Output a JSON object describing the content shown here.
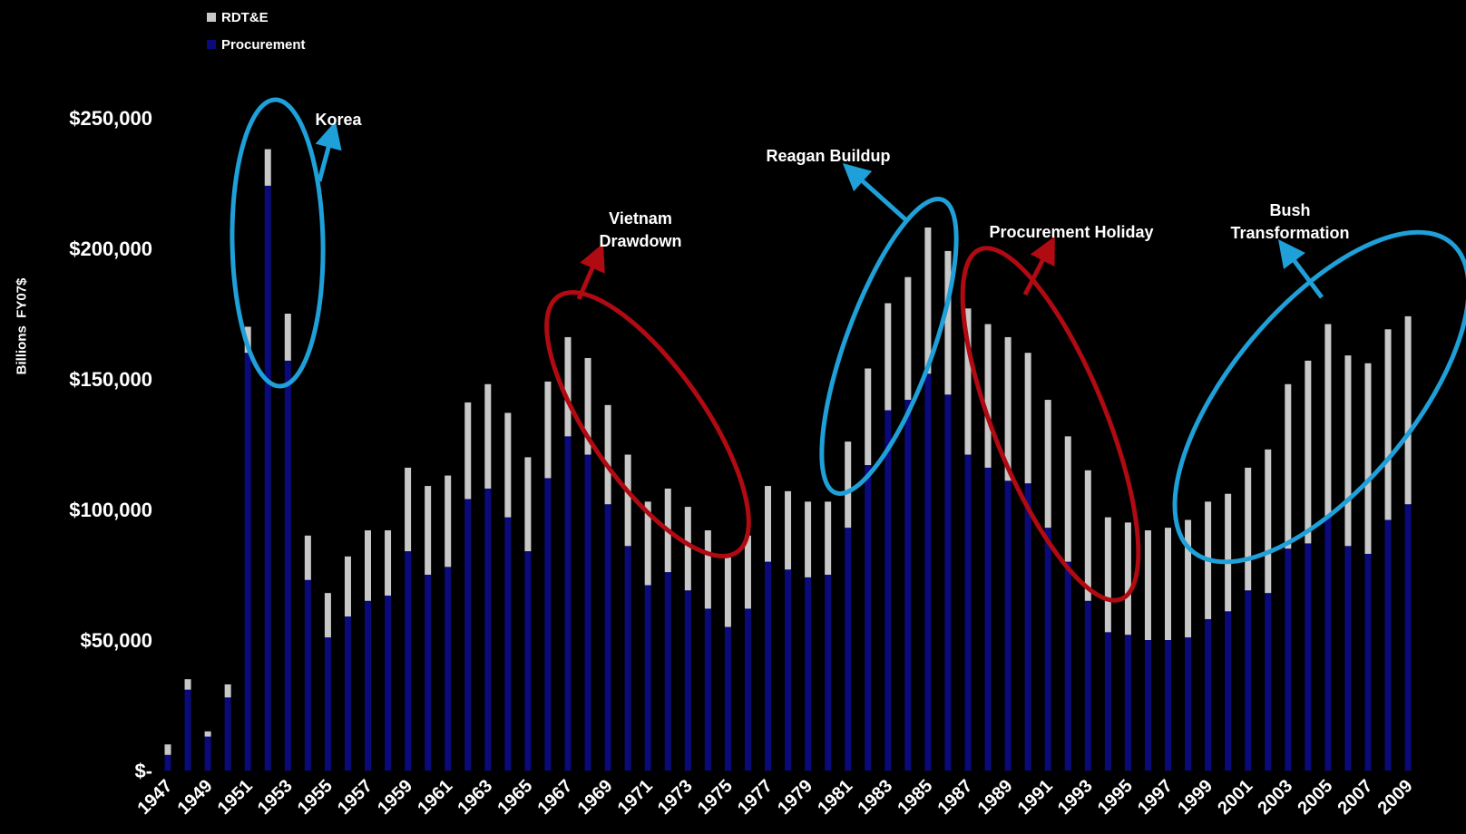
{
  "legend": [
    {
      "label": "RDT&E",
      "color": "#c8c8c8"
    },
    {
      "label": "Procurement",
      "color": "#0a0a7a"
    }
  ],
  "colors": {
    "background": "#000000",
    "procurement": "#0a0a7a",
    "rdte": "#c8c8c8",
    "highlight_blue": "#1fa0d8",
    "highlight_red": "#b00a12"
  },
  "chart_data": {
    "type": "bar",
    "stacked": true,
    "ylabel": "Billions  FY07$",
    "ylim": [
      0,
      250000
    ],
    "yticks": [
      {
        "value": 0,
        "label": "$-"
      },
      {
        "value": 50000,
        "label": "$50,000"
      },
      {
        "value": 100000,
        "label": "$100,000"
      },
      {
        "value": 150000,
        "label": "$150,000"
      },
      {
        "value": 200000,
        "label": "$200,000"
      },
      {
        "value": 250000,
        "label": "$250,000"
      }
    ],
    "categories": [
      1947,
      1948,
      1949,
      1950,
      1951,
      1952,
      1953,
      1954,
      1955,
      1956,
      1957,
      1958,
      1959,
      1960,
      1961,
      1962,
      1963,
      1964,
      1965,
      1966,
      1967,
      1968,
      1969,
      1970,
      1971,
      1972,
      1973,
      1974,
      1975,
      1976,
      1977,
      1978,
      1979,
      1980,
      1981,
      1982,
      1983,
      1984,
      1985,
      1986,
      1987,
      1988,
      1989,
      1990,
      1991,
      1992,
      1993,
      1994,
      1995,
      1996,
      1997,
      1998,
      1999,
      2000,
      2001,
      2002,
      2003,
      2004,
      2005,
      2006,
      2007,
      2008,
      2009
    ],
    "series": [
      {
        "name": "Procurement",
        "values": [
          6000,
          31000,
          13000,
          28000,
          160000,
          224000,
          157000,
          73000,
          51000,
          59000,
          65000,
          67000,
          84000,
          75000,
          78000,
          104000,
          108000,
          97000,
          84000,
          112000,
          128000,
          121000,
          102000,
          86000,
          71000,
          76000,
          69000,
          62000,
          55000,
          62000,
          80000,
          77000,
          74000,
          75000,
          93000,
          117000,
          138000,
          142000,
          152000,
          144000,
          121000,
          116000,
          111000,
          110000,
          93000,
          80000,
          65000,
          53000,
          52000,
          50000,
          50000,
          51000,
          58000,
          61000,
          69000,
          68000,
          85000,
          87000,
          97000,
          86000,
          83000,
          96000,
          102000
        ]
      },
      {
        "name": "RDT&E",
        "values": [
          4000,
          4000,
          2000,
          5000,
          10000,
          14000,
          18000,
          17000,
          17000,
          23000,
          27000,
          25000,
          32000,
          34000,
          35000,
          37000,
          40000,
          40000,
          36000,
          37000,
          38000,
          37000,
          38000,
          35000,
          32000,
          32000,
          32000,
          30000,
          27000,
          28000,
          29000,
          30000,
          29000,
          28000,
          33000,
          37000,
          41000,
          47000,
          56000,
          55000,
          56000,
          55000,
          55000,
          50000,
          49000,
          48000,
          50000,
          44000,
          43000,
          42000,
          43000,
          45000,
          45000,
          45000,
          47000,
          55000,
          63000,
          70000,
          74000,
          73000,
          73000,
          73000,
          72000
        ]
      }
    ],
    "xtick_labels": [
      "1947",
      "1949",
      "1951",
      "1953",
      "1955",
      "1957",
      "1959",
      "1961",
      "1963",
      "1965",
      "1967",
      "1969",
      "1971",
      "1973",
      "1975",
      "1977",
      "1979",
      "1981",
      "1983",
      "1985",
      "1987",
      "1989",
      "1991",
      "1993",
      "1995",
      "1997",
      "1999",
      "2001",
      "2003",
      "2005",
      "2007",
      "2009"
    ],
    "annotations": [
      {
        "text": [
          "Korea"
        ],
        "color": "blue"
      },
      {
        "text": [
          "Vietnam",
          "Drawdown"
        ],
        "color": "red"
      },
      {
        "text": [
          "Reagan Buildup"
        ],
        "color": "blue"
      },
      {
        "text": [
          "Procurement Holiday"
        ],
        "color": "red"
      },
      {
        "text": [
          "Bush",
          "Transformation"
        ],
        "color": "blue"
      }
    ]
  }
}
